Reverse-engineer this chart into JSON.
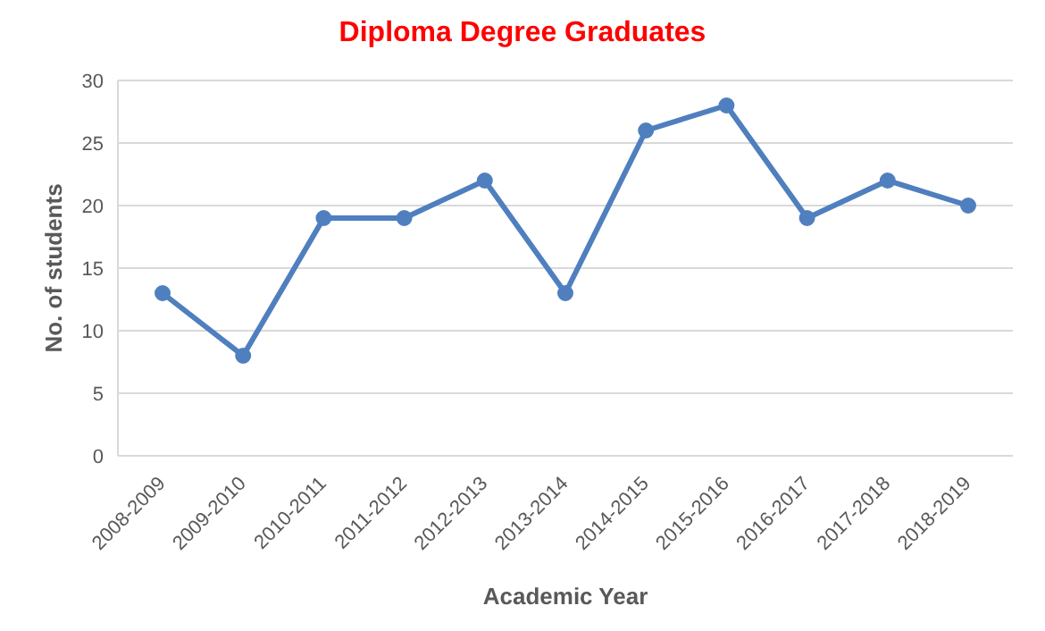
{
  "chart_data": {
    "type": "line",
    "title": "Diploma Degree Graduates",
    "xlabel": "Academic Year",
    "ylabel": "No. of students",
    "categories": [
      "2008-2009",
      "2009-2010",
      "2010-2011",
      "2011-2012",
      "2012-2013",
      "2013-2014",
      "2014-2015",
      "2015-2016",
      "2016-2017",
      "2017-2018",
      "2018-2019"
    ],
    "series": [
      {
        "color": "#4f7fbe",
        "values": [
          13,
          8,
          19,
          19,
          22,
          13,
          26,
          28,
          19,
          22,
          20
        ]
      }
    ],
    "ylim": [
      0,
      30
    ],
    "yticks": [
      0,
      5,
      10,
      15,
      20,
      25,
      30
    ],
    "grid": "y",
    "marker": "circle",
    "line_style": "solid",
    "legend": false
  }
}
